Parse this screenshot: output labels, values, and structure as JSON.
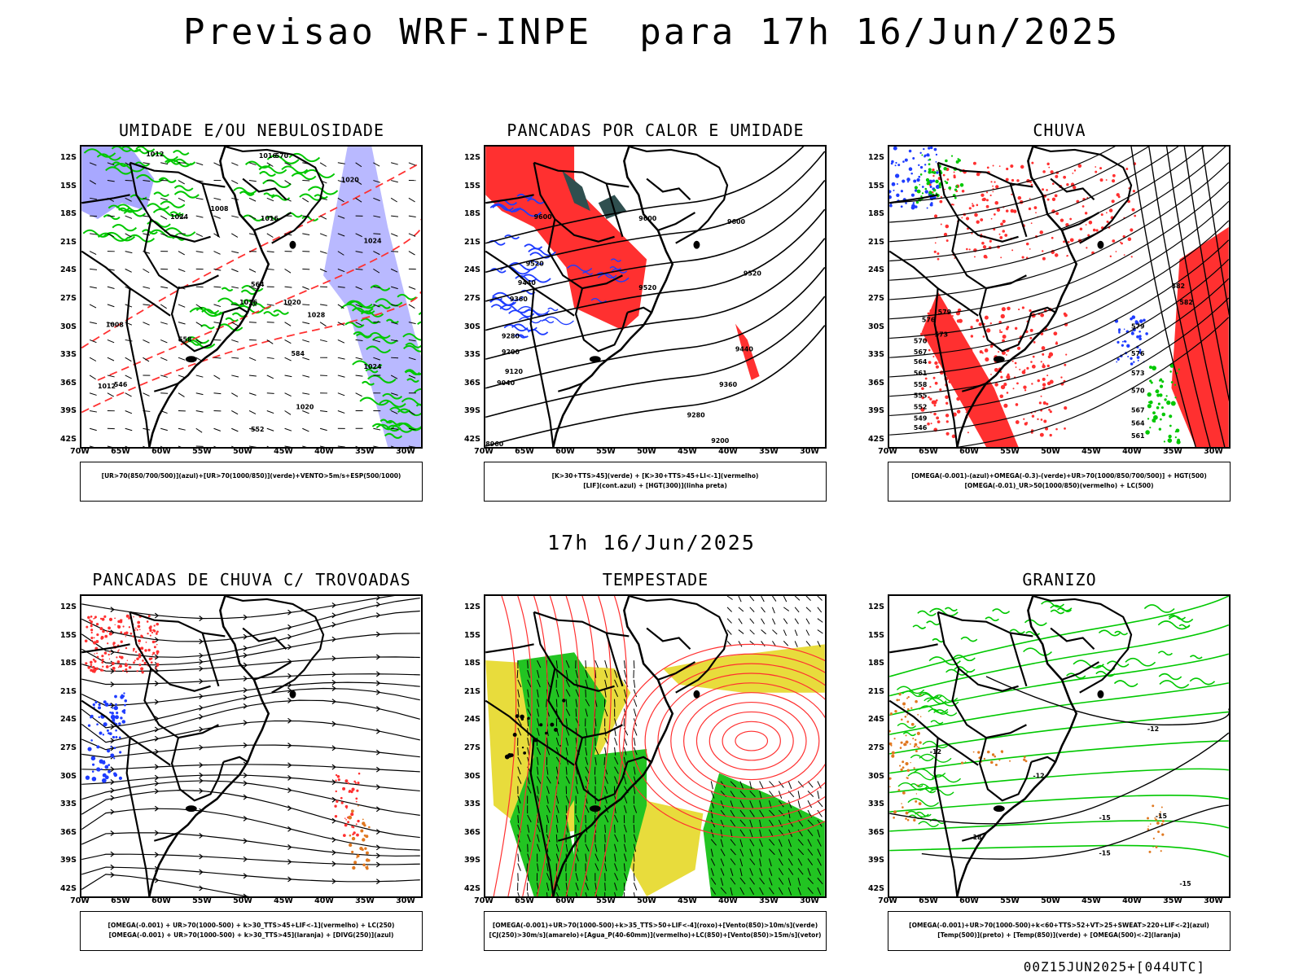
{
  "header": {
    "title": "Previsao WRF-INPE  para 17h 16/Jun/2025"
  },
  "mid_timestamp": "17h 16/Jun/2025",
  "footer": {
    "run_code": "00Z15JUN2025+[044UTC]"
  },
  "axes": {
    "lat_ticks": [
      "12S",
      "15S",
      "18S",
      "21S",
      "24S",
      "27S",
      "30S",
      "33S",
      "36S",
      "39S",
      "42S"
    ],
    "lon_ticks": [
      "70W",
      "65W",
      "60W",
      "55W",
      "50W",
      "45W",
      "40W",
      "35W",
      "30W"
    ]
  },
  "panels": [
    {
      "title": "UMIDADE E/OU NEBULOSIDADE",
      "legend": [
        "[UR>70(850/700/500)](azul)+[UR>70(1000/850)](verde)+VENTO>5m/s+ESP(500/1000)"
      ],
      "labels": [
        "1012",
        "1016",
        "1020",
        "1024",
        "1008",
        "1016",
        "1016",
        "1020",
        "1024",
        "1028",
        "1020",
        "1024",
        "1012",
        "1008",
        "570",
        "564",
        "558",
        "552",
        "546",
        "584"
      ]
    },
    {
      "title": "PANCADAS POR CALOR E UMIDADE",
      "legend": [
        "[K>30+TTS>45](verde) + [K>30+TTS>45+LI<-1](vermelho)",
        "[LIF](cont.azul) + [HGT(300)](linha preta)"
      ],
      "labels": [
        "9600",
        "9600",
        "9600",
        "9520",
        "9520",
        "9520",
        "9440",
        "9360",
        "9280",
        "9200",
        "9120",
        "9040",
        "8960",
        "9440",
        "9360",
        "9280",
        "9200"
      ]
    },
    {
      "title": "CHUVA",
      "legend": [
        "[OMEGA(-0.001)-(azul)+OMEGA(-0.3)-(verde)+UR>70(1000/850/700/500)] + HGT(500)",
        "[OMEGA(-0.01)_UR>50(1000/850)(vermelho) + LC(500)"
      ],
      "labels": [
        "579",
        "576",
        "573",
        "570",
        "567",
        "564",
        "561",
        "558",
        "555",
        "552",
        "549",
        "546",
        "582",
        "579",
        "576",
        "573",
        "570",
        "567",
        "564",
        "561",
        "582"
      ]
    },
    {
      "title": "PANCADAS DE CHUVA C/ TROVOADAS",
      "legend": [
        "[OMEGA(-0.001) + UR>70(1000-500) + k>30_TTS>45+LIF<-1](vermelho) + LC(250)",
        "[OMEGA(-0.001) + UR>70(1000-500) + k>30_TTS>45](laranja) + [DIVG(250)](azul)"
      ],
      "labels": []
    },
    {
      "title": "TEMPESTADE",
      "legend": [
        "[OMEGA(-0.001)+UR>70(1000-500)+k>35_TTS>50+LIF<-4](roxo)+[Vento(850)>10m/s](verde)",
        "[CJ(250)>30m/s](amarelo)+[Agua_P(40-60mm)](vermelho)+LC(850)+[Vento(850)>15m/s](vetor)"
      ],
      "labels": []
    },
    {
      "title": "GRANIZO",
      "legend": [
        "[OMEGA(-0.001)+UR>70(1000-500)+k<60+TTS>52+VT>25+SWEAT>220+LIF<-2](azul)",
        "[Temp(500)](preto) + [Temp(850)](verde) + [OMEGA(500)<-2](laranja)"
      ],
      "labels": [
        "-12",
        "-12",
        "-12",
        "-15",
        "-15",
        "-15",
        "-18",
        "-15"
      ]
    }
  ],
  "colors": {
    "blue": "#1e3cff",
    "green": "#00c800",
    "red": "#ff3030",
    "orange": "#e07820",
    "yellow": "#e8dc3c",
    "darkteal": "#2f4f4f",
    "lightblue": "#a8a8ff"
  }
}
